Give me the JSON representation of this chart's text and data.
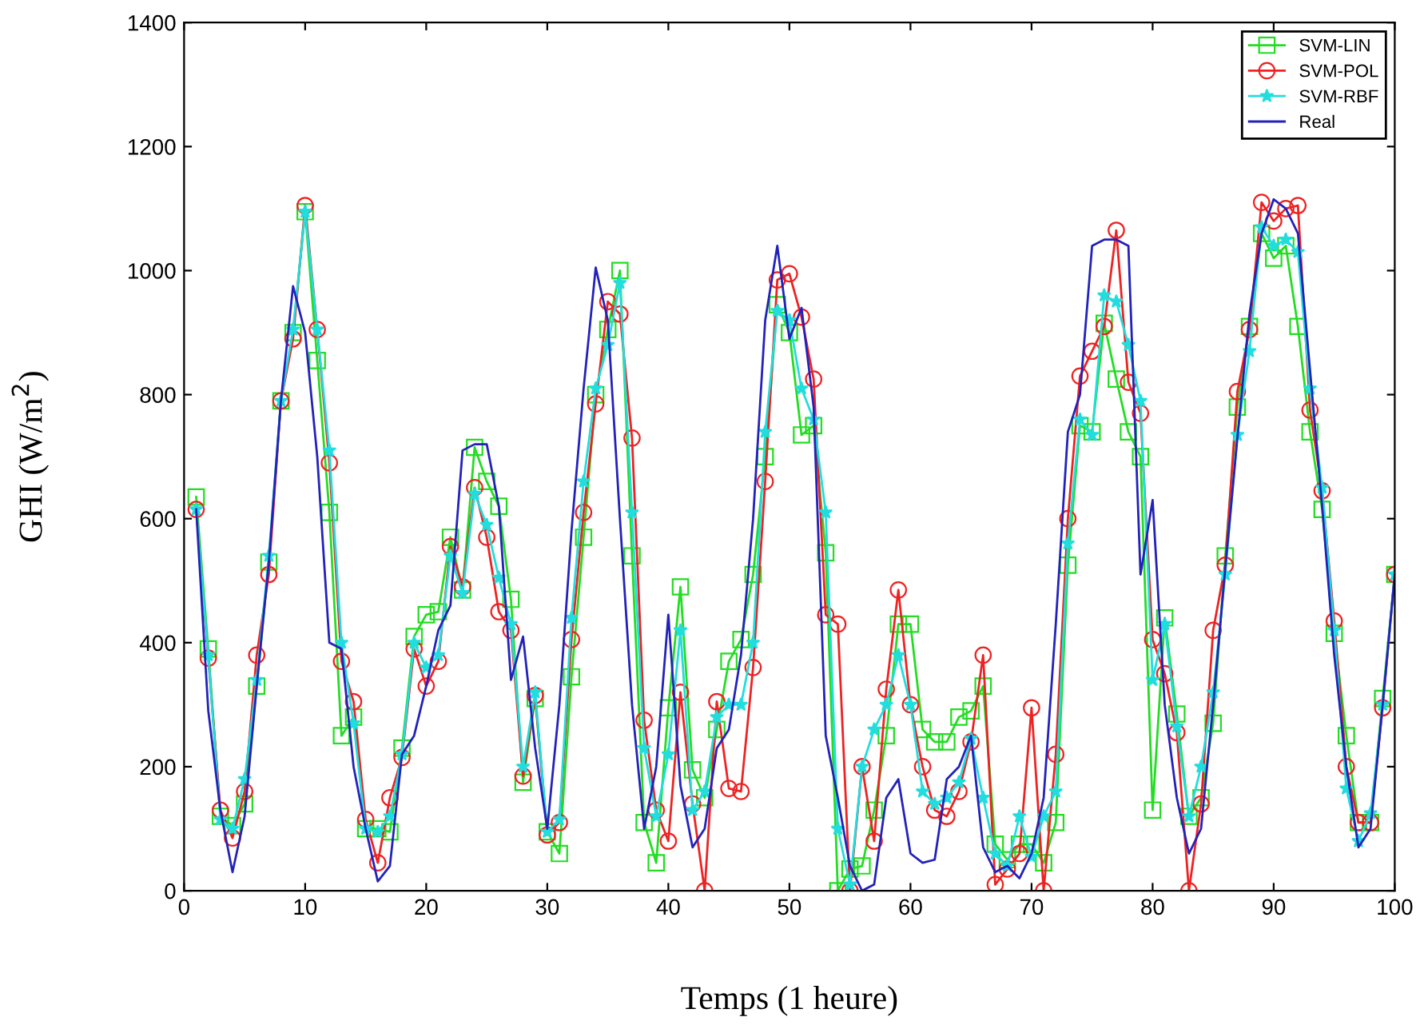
{
  "chart_data": {
    "type": "line",
    "xlabel": "Temps (1 heure)",
    "ylabel": "GHI (W/m$^{2}$)",
    "x": [
      1,
      2,
      3,
      4,
      5,
      6,
      7,
      8,
      9,
      10,
      11,
      12,
      13,
      14,
      15,
      16,
      17,
      18,
      19,
      20,
      21,
      22,
      23,
      24,
      25,
      26,
      27,
      28,
      29,
      30,
      31,
      32,
      33,
      34,
      35,
      36,
      37,
      38,
      39,
      40,
      41,
      42,
      43,
      44,
      45,
      46,
      47,
      48,
      49,
      50,
      51,
      52,
      53,
      54,
      55,
      56,
      57,
      58,
      59,
      60,
      61,
      62,
      63,
      64,
      65,
      66,
      67,
      68,
      69,
      70,
      71,
      72,
      73,
      74,
      75,
      76,
      77,
      78,
      79,
      80,
      81,
      82,
      83,
      84,
      85,
      86,
      87,
      88,
      89,
      90,
      91,
      92,
      93,
      94,
      95,
      96,
      97,
      98,
      99,
      100
    ],
    "xlim": [
      0,
      100
    ],
    "xticks": [
      0,
      10,
      20,
      30,
      40,
      50,
      60,
      70,
      80,
      90,
      100
    ],
    "ylim": [
      0,
      1400
    ],
    "yticks": [
      0,
      200,
      400,
      600,
      800,
      1000,
      1200,
      1400
    ],
    "grid": false,
    "legend": "top right",
    "series": [
      {
        "name": "SVM-LIN",
        "color": "#22dd22",
        "marker": "square",
        "values": [
          635,
          390,
          120,
          105,
          140,
          330,
          530,
          790,
          900,
          1095,
          855,
          610,
          250,
          280,
          100,
          100,
          95,
          230,
          410,
          445,
          450,
          570,
          485,
          715,
          660,
          620,
          470,
          175,
          310,
          95,
          60,
          345,
          570,
          800,
          905,
          1000,
          540,
          110,
          45,
          295,
          490,
          195,
          150,
          260,
          370,
          405,
          510,
          700,
          945,
          900,
          735,
          750,
          545,
          0,
          35,
          40,
          130,
          250,
          430,
          430,
          260,
          240,
          240,
          280,
          290,
          330,
          75,
          50,
          75,
          75,
          45,
          110,
          525,
          750,
          740,
          915,
          825,
          740,
          700,
          130,
          440,
          285,
          120,
          150,
          270,
          540,
          780,
          910,
          1060,
          1020,
          1040,
          910,
          740,
          615,
          415,
          250,
          110,
          110,
          310,
          510
        ]
      },
      {
        "name": "SVM-POL",
        "color": "#ee2222",
        "marker": "circle",
        "values": [
          615,
          375,
          130,
          85,
          160,
          380,
          510,
          790,
          890,
          1105,
          905,
          690,
          370,
          305,
          115,
          45,
          150,
          215,
          390,
          330,
          370,
          555,
          490,
          650,
          570,
          450,
          420,
          185,
          315,
          90,
          110,
          405,
          610,
          785,
          950,
          930,
          730,
          275,
          130,
          80,
          320,
          140,
          0,
          305,
          165,
          160,
          360,
          660,
          985,
          995,
          925,
          825,
          445,
          430,
          0,
          200,
          80,
          325,
          485,
          300,
          200,
          130,
          120,
          160,
          240,
          380,
          10,
          35,
          60,
          295,
          0,
          220,
          600,
          830,
          870,
          910,
          1065,
          820,
          770,
          405,
          350,
          255,
          0,
          140,
          420,
          525,
          805,
          905,
          1110,
          1080,
          1100,
          1105,
          775,
          645,
          435,
          200,
          110,
          110,
          295,
          510
        ]
      },
      {
        "name": "SVM-RBF",
        "color": "#22dddd",
        "marker": "star",
        "values": [
          615,
          380,
          115,
          100,
          180,
          340,
          540,
          790,
          905,
          1095,
          905,
          710,
          400,
          270,
          100,
          95,
          120,
          220,
          400,
          360,
          380,
          540,
          480,
          640,
          590,
          505,
          430,
          200,
          320,
          95,
          115,
          440,
          660,
          810,
          880,
          980,
          610,
          230,
          120,
          220,
          420,
          130,
          160,
          280,
          300,
          300,
          400,
          740,
          935,
          920,
          810,
          760,
          610,
          100,
          10,
          200,
          260,
          300,
          380,
          300,
          160,
          140,
          150,
          175,
          245,
          150,
          60,
          40,
          120,
          55,
          120,
          160,
          560,
          760,
          735,
          960,
          950,
          880,
          790,
          340,
          430,
          265,
          120,
          200,
          320,
          510,
          735,
          870,
          1070,
          1040,
          1050,
          1030,
          810,
          650,
          420,
          165,
          80,
          125,
          300,
          510
        ]
      },
      {
        "name": "Real",
        "color": "#2222bb",
        "marker": "none",
        "values": [
          615,
          290,
          130,
          30,
          120,
          330,
          530,
          790,
          975,
          900,
          700,
          400,
          390,
          200,
          100,
          15,
          40,
          220,
          250,
          330,
          420,
          460,
          710,
          720,
          720,
          620,
          340,
          410,
          230,
          100,
          300,
          580,
          810,
          1005,
          920,
          600,
          300,
          100,
          200,
          445,
          170,
          70,
          100,
          230,
          260,
          380,
          600,
          920,
          1040,
          890,
          940,
          780,
          250,
          150,
          40,
          0,
          10,
          150,
          180,
          60,
          45,
          50,
          180,
          200,
          250,
          70,
          30,
          40,
          20,
          60,
          150,
          430,
          740,
          800,
          1040,
          1050,
          1050,
          1040,
          510,
          630,
          300,
          150,
          60,
          100,
          300,
          520,
          730,
          930,
          1060,
          1115,
          1100,
          1060,
          840,
          620,
          380,
          200,
          70,
          100,
          300,
          510
        ]
      }
    ]
  }
}
